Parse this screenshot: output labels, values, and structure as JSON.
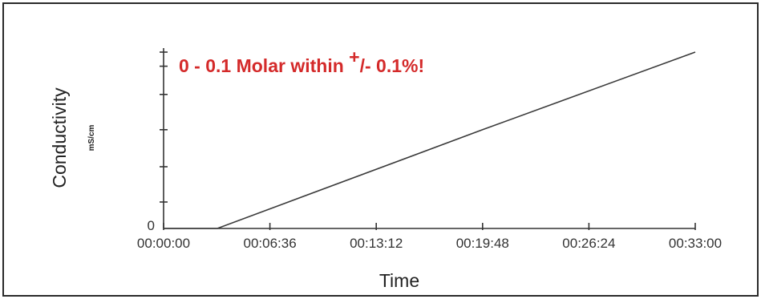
{
  "chart_data": {
    "type": "line",
    "title": "",
    "annotation": {
      "prefix": "0 - 0.1 Molar within ",
      "sup": "+",
      "suffix": "/- 0.1%!",
      "color": "#d42a2a"
    },
    "xlabel": "Time",
    "ylabel": "Conductivity",
    "yunit": "mS/cm",
    "x_ticks": [
      "00:00:00",
      "00:06:36",
      "00:13:12",
      "00:19:48",
      "00:26:24",
      "00:33:00"
    ],
    "x_tick_seconds": [
      0,
      396,
      792,
      1188,
      1584,
      1980
    ],
    "xlim_seconds": [
      0,
      1980
    ],
    "y_tick_labels": [
      "0"
    ],
    "ylim": [
      0,
      1
    ],
    "grid": false,
    "series": [
      {
        "x_seconds": [
          0,
          130,
          200,
          1188,
          1980
        ],
        "y": [
          0.0,
          0.0,
          0.0,
          0.56,
          1.0
        ],
        "color": "#3a3a3a"
      }
    ]
  }
}
